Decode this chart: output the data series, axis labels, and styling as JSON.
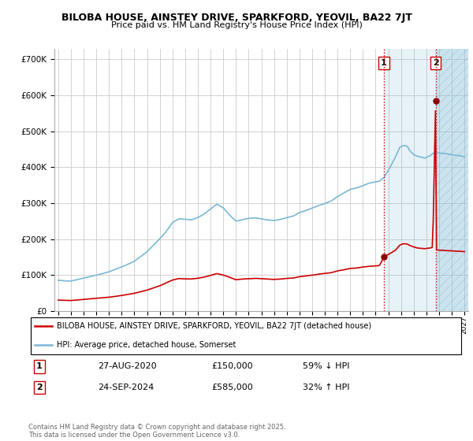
{
  "title": "BILOBA HOUSE, AINSTEY DRIVE, SPARKFORD, YEOVIL, BA22 7JT",
  "subtitle": "Price paid vs. HM Land Registry's House Price Index (HPI)",
  "hpi_color": "#7bb8d4",
  "house_color": "#cc0000",
  "vline_color": "#cc0000",
  "marker_color": "#8b0000",
  "ylim": [
    0,
    730000
  ],
  "yticks": [
    0,
    100000,
    200000,
    300000,
    400000,
    500000,
    600000,
    700000
  ],
  "xlim_left": 1994.7,
  "xlim_right": 2027.3,
  "sale1_year": 2020.65,
  "sale1_value": 150000,
  "sale2_year": 2024.73,
  "sale2_value": 585000,
  "legend_house": "BILOBA HOUSE, AINSTEY DRIVE, SPARKFORD, YEOVIL, BA22 7JT (detached house)",
  "legend_hpi": "HPI: Average price, detached house, Somerset",
  "table_data": [
    {
      "num": "1",
      "date": "27-AUG-2020",
      "price": "£150,000",
      "hpi": "59% ↓ HPI"
    },
    {
      "num": "2",
      "date": "24-SEP-2024",
      "price": "£585,000",
      "hpi": "32% ↑ HPI"
    }
  ],
  "footer": "Contains HM Land Registry data © Crown copyright and database right 2025.\nThis data is licensed under the Open Government Licence v3.0.",
  "background_color": "#ffffff",
  "grid_color": "#cccccc",
  "hatch_fill_color": "#ddeeff",
  "sale_fill_color": "#ddeeff"
}
